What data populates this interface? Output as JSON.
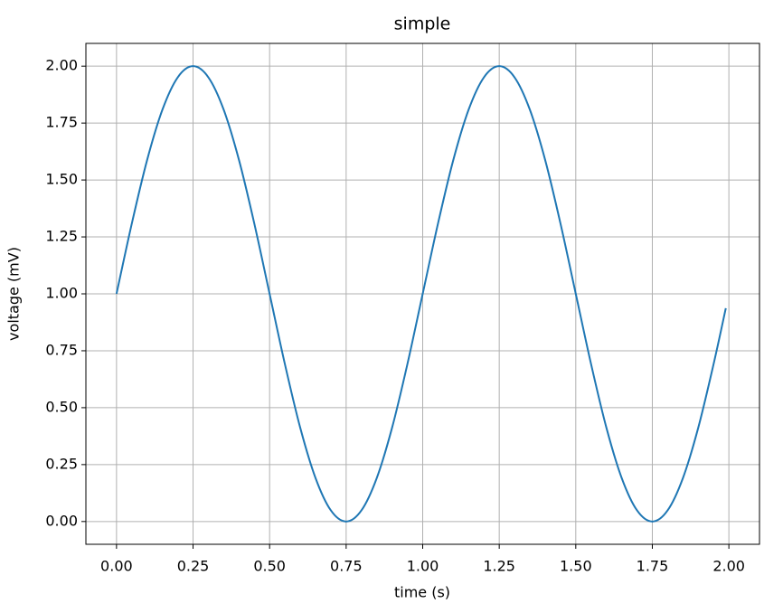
{
  "chart_data": {
    "type": "line",
    "title": "simple",
    "x_label": "time (s)",
    "y_label": "voltage (mV)",
    "x": [
      0,
      0.05,
      0.1,
      0.15,
      0.2,
      0.25,
      0.3,
      0.35,
      0.4,
      0.45,
      0.5,
      0.55,
      0.6,
      0.65,
      0.7,
      0.75,
      0.8,
      0.85,
      0.9,
      0.95,
      1.0,
      1.05,
      1.1,
      1.15,
      1.2,
      1.25,
      1.3,
      1.35,
      1.4,
      1.45,
      1.5,
      1.55,
      1.6,
      1.65,
      1.7,
      1.75,
      1.8,
      1.85,
      1.9,
      1.95,
      1.99
    ],
    "values": [
      1,
      1.309,
      1.588,
      1.809,
      1.951,
      2,
      1.951,
      1.809,
      1.588,
      1.309,
      1,
      0.691,
      0.412,
      0.191,
      0.049,
      0,
      0.049,
      0.191,
      0.412,
      0.691,
      1,
      1.309,
      1.588,
      1.809,
      1.951,
      2,
      1.951,
      1.809,
      1.588,
      1.309,
      1,
      0.691,
      0.412,
      0.191,
      0.049,
      0,
      0.049,
      0.191,
      0.412,
      0.691,
      0.937
    ],
    "color": "#1f77b4",
    "grid": true,
    "xlim": [
      -0.1,
      2.1
    ],
    "xticks": [
      {
        "value": 0,
        "label": "0.00"
      },
      {
        "value": 0.25,
        "label": "0.25"
      },
      {
        "value": 0.5,
        "label": "0.50"
      },
      {
        "value": 0.75,
        "label": "0.75"
      },
      {
        "value": 1,
        "label": "1.00"
      },
      {
        "value": 1.25,
        "label": "1.25"
      },
      {
        "value": 1.5,
        "label": "1.50"
      },
      {
        "value": 1.75,
        "label": "1.75"
      },
      {
        "value": 2,
        "label": "2.00"
      }
    ],
    "ylim": [
      -0.1,
      2.1
    ],
    "yticks": [
      {
        "value": 0,
        "label": "0.00"
      },
      {
        "value": 0.25,
        "label": "0.25"
      },
      {
        "value": 0.5,
        "label": "0.50"
      },
      {
        "value": 0.75,
        "label": "0.75"
      },
      {
        "value": 1,
        "label": "1.00"
      },
      {
        "value": 1.25,
        "label": "1.25"
      },
      {
        "value": 1.5,
        "label": "1.50"
      },
      {
        "value": 1.75,
        "label": "1.75"
      },
      {
        "value": 2,
        "label": "2.00"
      }
    ]
  }
}
